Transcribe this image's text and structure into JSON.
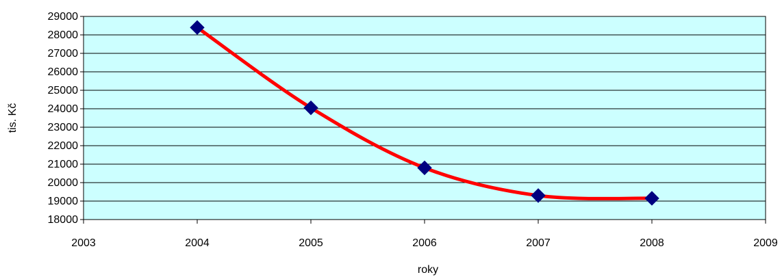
{
  "chart_data": {
    "type": "line",
    "title": "",
    "xlabel": "roky",
    "ylabel": "tis. Kč",
    "x": [
      2004,
      2005,
      2006,
      2007,
      2008
    ],
    "series": [
      {
        "values": [
          28400,
          24050,
          20800,
          19300,
          19150
        ]
      }
    ],
    "xlim": [
      2003,
      2009
    ],
    "ylim": [
      18000,
      29000
    ],
    "x_ticks": [
      "2003",
      "2004",
      "2005",
      "2006",
      "2007",
      "2008",
      "2009"
    ],
    "y_ticks": [
      "18000",
      "19000",
      "20000",
      "21000",
      "22000",
      "23000",
      "24000",
      "25000",
      "26000",
      "27000",
      "28000",
      "29000"
    ],
    "grid": "horizontal",
    "smooth": true,
    "colors": {
      "plot_background": "#ccffff",
      "line": "#ff0000",
      "marker": "#000080",
      "gridline": "#000000",
      "axis": "#000000"
    },
    "marker": "diamond",
    "legend": "none"
  }
}
